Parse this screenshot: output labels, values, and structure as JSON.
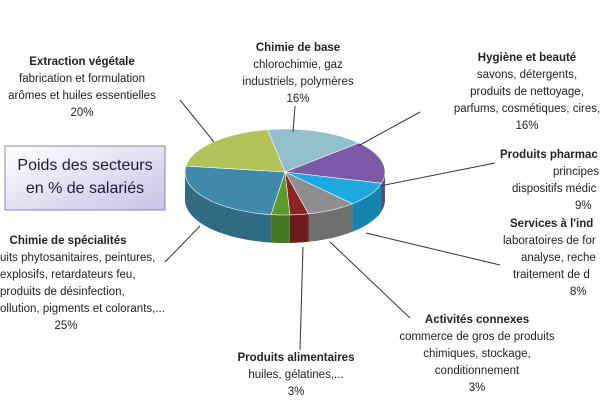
{
  "chart_data": {
    "type": "pie",
    "caption": [
      "Poids des secteurs",
      "en % de salariés"
    ],
    "categories": [
      "Chimie de base",
      "Hygiène et beauté",
      "Produits pharmac",
      "Services à l'ind",
      "Activités connexes",
      "Produits alimentaires",
      "Chimie de spécialités",
      "Extraction végétale"
    ],
    "descriptions": [
      [
        "chlorochimie, gaz",
        "industriels, polymères"
      ],
      [
        "savons, détergents,",
        "produits de nettoyage,",
        "parfums, cosmétiques, cires,"
      ],
      [
        "principes act",
        "dispositifs médic"
      ],
      [
        "laboratoires de for",
        "analyse, reche",
        "traitement de  d"
      ],
      [
        "commerce de gros de produits",
        "chimiques, stockage,",
        "conditionnement"
      ],
      [
        "huiles, gélatines,..."
      ],
      [
        "uits phytosanitaires, peintures,",
        "explosifs, retardateurs feu,",
        "produits de désinfection,",
        "ollution, pigments et colorants,..."
      ],
      [
        "fabrication et formulation",
        "arômes et huiles essentielles"
      ]
    ],
    "values": [
      16,
      16,
      9,
      8,
      3,
      3,
      25,
      20
    ],
    "value_labels": [
      "16%",
      "16%",
      "9%",
      "8%",
      "3%",
      "3%",
      "25%",
      "20%"
    ],
    "colors": [
      "#93bfcc",
      "#7a5aa6",
      "#1ea8e0",
      "#8e8e8e",
      "#8a2424",
      "#5b9b2a",
      "#3f8aa9",
      "#b4c25a"
    ]
  }
}
